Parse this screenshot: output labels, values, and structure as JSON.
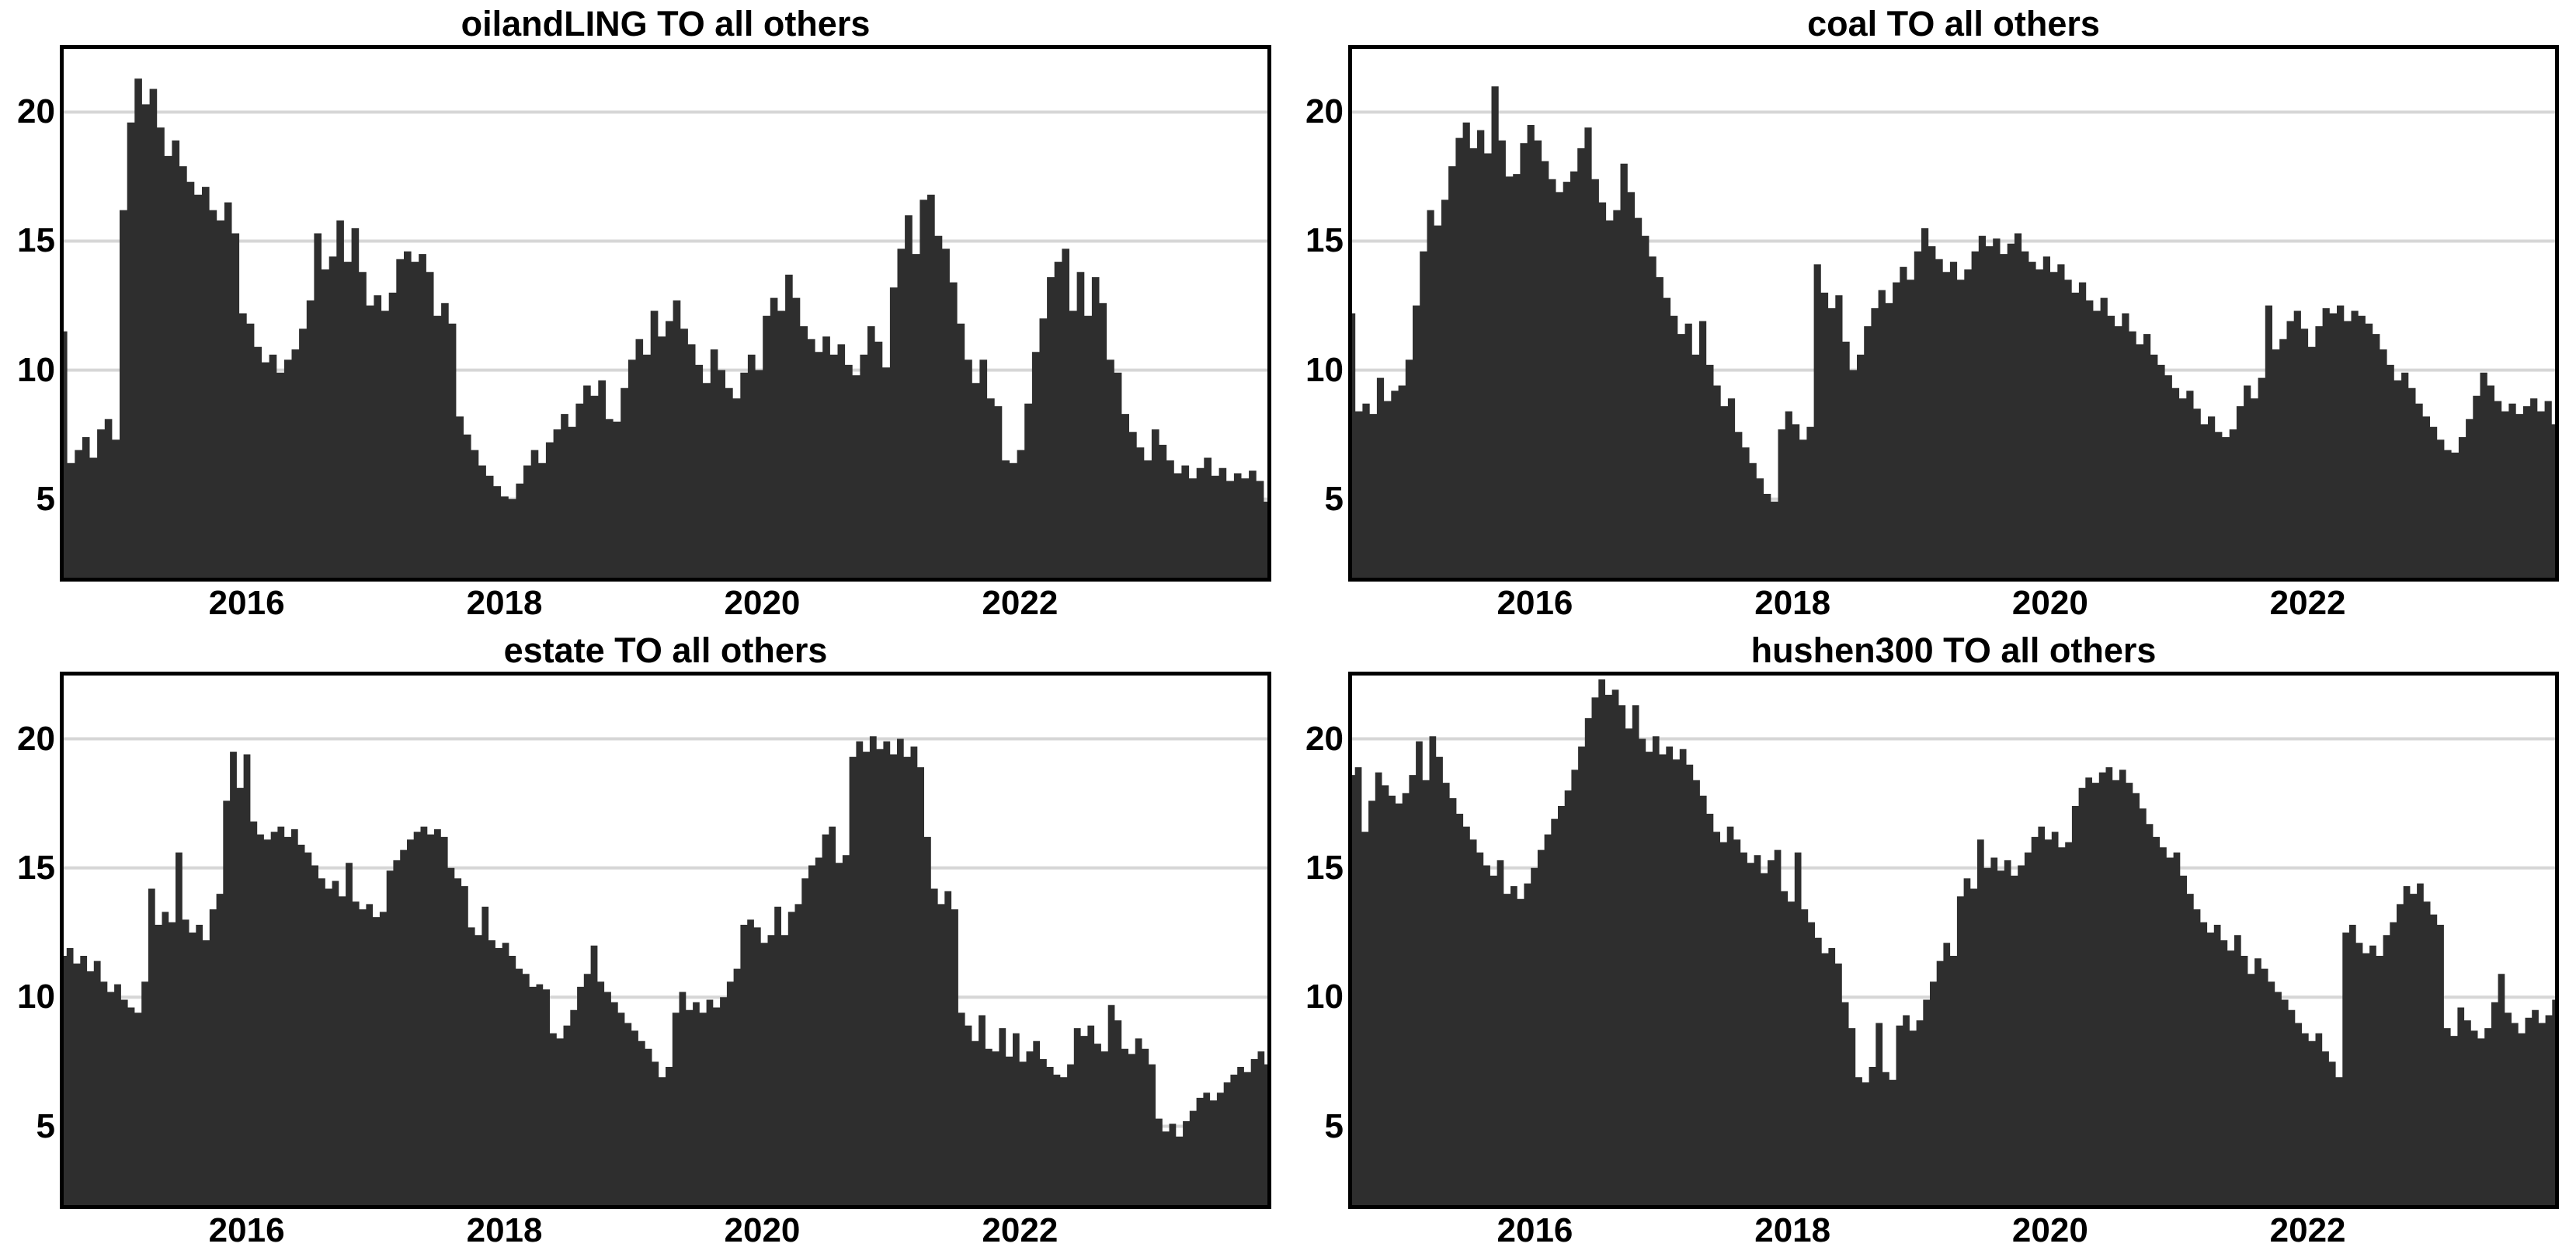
{
  "figure": {
    "description": "2x2 grid of directional spillover (TO all others) area charts",
    "background": "#ffffff"
  },
  "colors": {
    "fill": "#2e2e2e",
    "grid": "#d6d6d6",
    "border": "#000000",
    "text": "#000000"
  },
  "chart_data": [
    {
      "type": "area",
      "title": "oilandLING TO all others",
      "xlabel": "",
      "ylabel": "",
      "x_start": 2014.55,
      "x_end": 2023.95,
      "x_ticks": [
        2016,
        2018,
        2020,
        2022
      ],
      "x_tick_labels": [
        "2016",
        "2018",
        "2020",
        "2022"
      ],
      "y_ticks": [
        5,
        10,
        15,
        20
      ],
      "y_tick_labels": [
        "5",
        "10",
        "15",
        "20"
      ],
      "ylim": [
        1.8,
        22.6
      ],
      "grid": true,
      "legend": "none",
      "values": [
        11.5,
        6.4,
        6.9,
        7.4,
        6.6,
        7.7,
        8.1,
        7.3,
        16.2,
        19.6,
        21.3,
        20.3,
        20.9,
        19.4,
        18.3,
        18.9,
        17.9,
        17.3,
        16.8,
        17.1,
        16.2,
        15.8,
        16.5,
        15.3,
        12.2,
        11.8,
        10.9,
        10.3,
        10.6,
        9.9,
        10.4,
        10.8,
        11.6,
        12.7,
        15.3,
        13.9,
        14.4,
        15.8,
        14.2,
        15.5,
        13.8,
        12.5,
        12.9,
        12.3,
        13.0,
        14.3,
        14.6,
        14.2,
        14.5,
        13.8,
        12.1,
        12.6,
        11.8,
        8.2,
        7.5,
        6.9,
        6.3,
        5.9,
        5.5,
        5.1,
        5.0,
        5.6,
        6.3,
        6.9,
        6.4,
        7.2,
        7.7,
        8.3,
        7.8,
        8.7,
        9.4,
        9.0,
        9.6,
        8.1,
        8.0,
        9.3,
        10.4,
        11.2,
        10.6,
        12.3,
        11.3,
        11.9,
        12.7,
        11.6,
        11.0,
        10.2,
        9.5,
        10.8,
        10.0,
        9.3,
        8.9,
        9.9,
        10.6,
        10.0,
        12.1,
        12.8,
        12.3,
        13.7,
        12.8,
        11.7,
        11.2,
        10.7,
        11.3,
        10.6,
        11.0,
        10.2,
        9.8,
        10.6,
        11.7,
        11.1,
        10.1,
        13.2,
        14.7,
        16.0,
        14.5,
        16.6,
        16.8,
        15.2,
        14.7,
        13.4,
        11.8,
        10.4,
        9.5,
        10.4,
        8.9,
        8.6,
        6.5,
        6.4,
        6.9,
        8.7,
        10.7,
        12.0,
        13.6,
        14.2,
        14.7,
        12.3,
        13.8,
        12.1,
        13.6,
        12.6,
        10.4,
        9.9,
        8.3,
        7.6,
        7.0,
        6.5,
        7.7,
        7.1,
        6.5,
        6.0,
        6.3,
        5.8,
        6.2,
        6.6,
        5.9,
        6.2,
        5.7,
        6.0,
        5.8,
        6.1,
        5.7,
        4.9
      ]
    },
    {
      "type": "area",
      "title": "coal TO all others",
      "xlabel": "",
      "ylabel": "",
      "x_start": 2014.55,
      "x_end": 2023.95,
      "x_ticks": [
        2016,
        2018,
        2020,
        2022
      ],
      "x_tick_labels": [
        "2016",
        "2018",
        "2020",
        "2022"
      ],
      "y_ticks": [
        5,
        10,
        15,
        20
      ],
      "y_tick_labels": [
        "5",
        "10",
        "15",
        "20"
      ],
      "ylim": [
        1.8,
        22.6
      ],
      "grid": true,
      "legend": "none",
      "values": [
        12.2,
        8.4,
        8.7,
        8.3,
        9.7,
        8.8,
        9.2,
        9.4,
        10.4,
        12.5,
        14.6,
        16.2,
        15.6,
        16.6,
        17.9,
        19.0,
        19.6,
        18.6,
        19.3,
        18.4,
        21.0,
        18.9,
        17.5,
        17.6,
        18.8,
        19.5,
        18.9,
        18.1,
        17.4,
        16.9,
        17.3,
        17.7,
        18.6,
        19.4,
        17.4,
        16.5,
        15.8,
        16.2,
        18.0,
        16.9,
        15.9,
        15.2,
        14.4,
        13.6,
        12.8,
        12.1,
        11.4,
        11.8,
        10.6,
        11.9,
        10.2,
        9.4,
        8.6,
        8.9,
        7.6,
        7.0,
        6.4,
        5.8,
        5.2,
        4.9,
        7.7,
        8.4,
        7.9,
        7.3,
        7.8,
        14.1,
        13.0,
        12.4,
        12.9,
        11.1,
        10.0,
        10.6,
        11.7,
        12.4,
        13.1,
        12.6,
        13.4,
        14.0,
        13.5,
        14.6,
        15.5,
        14.8,
        14.3,
        13.8,
        14.2,
        13.5,
        13.9,
        14.6,
        15.2,
        14.8,
        15.1,
        14.5,
        14.9,
        15.3,
        14.6,
        14.2,
        13.9,
        14.4,
        13.8,
        14.1,
        13.5,
        13.0,
        13.4,
        12.7,
        12.3,
        12.8,
        12.1,
        11.7,
        12.2,
        11.5,
        11.0,
        11.4,
        10.6,
        10.2,
        9.8,
        9.3,
        8.9,
        9.2,
        8.5,
        7.9,
        8.2,
        7.6,
        7.4,
        7.7,
        8.6,
        9.4,
        8.9,
        9.7,
        12.5,
        10.8,
        11.2,
        11.9,
        12.3,
        11.6,
        10.9,
        11.7,
        12.4,
        12.2,
        12.5,
        11.9,
        12.3,
        12.1,
        11.8,
        11.4,
        10.8,
        10.2,
        9.6,
        9.9,
        9.3,
        8.7,
        8.2,
        7.8,
        7.3,
        6.9,
        6.8,
        7.4,
        8.1,
        9.0,
        9.9,
        9.4,
        8.8,
        8.4,
        8.7,
        8.3,
        8.6,
        8.9,
        8.4,
        8.8,
        7.9
      ]
    },
    {
      "type": "area",
      "title": "estate TO all others",
      "xlabel": "",
      "ylabel": "",
      "x_start": 2014.55,
      "x_end": 2023.95,
      "x_ticks": [
        2016,
        2018,
        2020,
        2022
      ],
      "x_tick_labels": [
        "2016",
        "2018",
        "2020",
        "2022"
      ],
      "y_ticks": [
        5,
        10,
        15,
        20
      ],
      "y_tick_labels": [
        "5",
        "10",
        "15",
        "20"
      ],
      "ylim": [
        1.8,
        22.6
      ],
      "grid": true,
      "legend": "none",
      "values": [
        11.6,
        11.9,
        11.3,
        11.6,
        11.0,
        11.4,
        10.6,
        10.2,
        10.5,
        9.9,
        9.6,
        9.4,
        10.6,
        14.2,
        12.8,
        13.3,
        12.9,
        15.6,
        13.0,
        12.5,
        12.8,
        12.2,
        13.4,
        14.0,
        17.6,
        19.5,
        18.1,
        19.4,
        16.8,
        16.3,
        16.1,
        16.4,
        16.6,
        16.2,
        16.5,
        15.9,
        15.6,
        15.1,
        14.6,
        14.2,
        14.5,
        13.9,
        15.2,
        13.7,
        13.4,
        13.6,
        13.1,
        13.3,
        14.9,
        15.3,
        15.7,
        16.1,
        16.4,
        16.6,
        16.3,
        16.5,
        16.2,
        15.0,
        14.6,
        14.3,
        12.7,
        12.4,
        13.5,
        12.2,
        11.9,
        12.1,
        11.6,
        11.1,
        10.9,
        10.4,
        10.5,
        10.3,
        8.6,
        8.4,
        8.9,
        9.5,
        10.4,
        10.9,
        12.0,
        10.6,
        10.2,
        9.8,
        9.4,
        9.0,
        8.7,
        8.3,
        8.0,
        7.5,
        6.9,
        7.3,
        9.4,
        10.2,
        9.5,
        9.8,
        9.4,
        9.9,
        9.6,
        10.0,
        10.6,
        11.1,
        12.8,
        13.0,
        12.7,
        12.1,
        12.4,
        13.5,
        12.4,
        13.3,
        13.6,
        14.6,
        15.1,
        15.4,
        16.3,
        16.6,
        15.2,
        15.5,
        19.3,
        19.9,
        19.5,
        20.1,
        19.6,
        19.9,
        19.4,
        20.0,
        19.3,
        19.7,
        18.9,
        16.2,
        14.2,
        13.6,
        14.1,
        13.4,
        9.4,
        8.9,
        8.3,
        9.3,
        8.0,
        7.9,
        8.8,
        7.7,
        8.6,
        7.5,
        7.9,
        8.3,
        7.6,
        7.3,
        7.0,
        6.9,
        7.4,
        8.8,
        8.5,
        8.9,
        8.2,
        7.9,
        9.7,
        9.1,
        8.0,
        7.8,
        8.4,
        8.0,
        7.4,
        5.3,
        4.8,
        5.1,
        4.6,
        5.2,
        5.6,
        6.1,
        6.3,
        6.0,
        6.3,
        6.7,
        7.0,
        7.3,
        7.1,
        7.6,
        7.9,
        7.4
      ]
    },
    {
      "type": "area",
      "title": "hushen300 TO all others",
      "xlabel": "",
      "ylabel": "",
      "x_start": 2014.55,
      "x_end": 2023.95,
      "x_ticks": [
        2016,
        2018,
        2020,
        2022
      ],
      "x_tick_labels": [
        "2016",
        "2018",
        "2020",
        "2022"
      ],
      "y_ticks": [
        5,
        10,
        15,
        20
      ],
      "y_tick_labels": [
        "5",
        "10",
        "15",
        "20"
      ],
      "ylim": [
        1.8,
        22.6
      ],
      "grid": true,
      "legend": "none",
      "values": [
        18.6,
        18.9,
        16.4,
        17.6,
        18.7,
        18.2,
        17.8,
        17.5,
        17.9,
        18.6,
        19.9,
        18.4,
        20.1,
        19.3,
        18.3,
        17.7,
        17.1,
        16.6,
        16.1,
        15.6,
        15.1,
        14.7,
        15.3,
        14.0,
        14.3,
        13.8,
        14.4,
        15.0,
        15.7,
        16.3,
        16.9,
        17.4,
        18.0,
        18.8,
        19.7,
        20.8,
        21.6,
        22.3,
        21.7,
        21.9,
        21.3,
        20.4,
        21.3,
        20.0,
        19.5,
        20.1,
        19.4,
        19.7,
        19.2,
        19.6,
        19.0,
        18.4,
        17.8,
        17.1,
        16.4,
        16.0,
        16.6,
        16.1,
        15.6,
        15.2,
        15.5,
        14.8,
        15.3,
        15.7,
        14.1,
        13.7,
        15.6,
        13.4,
        12.9,
        12.3,
        11.7,
        11.9,
        11.3,
        9.8,
        8.8,
        6.9,
        6.7,
        7.3,
        9.0,
        7.1,
        6.8,
        8.9,
        9.3,
        8.7,
        9.1,
        9.9,
        10.6,
        11.4,
        12.1,
        11.6,
        13.9,
        14.6,
        14.2,
        16.1,
        15.0,
        15.4,
        14.9,
        15.3,
        14.7,
        15.1,
        15.6,
        16.2,
        16.6,
        16.1,
        16.4,
        15.8,
        16.0,
        17.4,
        18.1,
        18.5,
        18.3,
        18.7,
        18.9,
        18.4,
        18.8,
        18.3,
        17.9,
        17.3,
        16.7,
        16.2,
        15.8,
        15.4,
        15.6,
        14.7,
        14.0,
        13.4,
        12.9,
        12.5,
        12.8,
        12.2,
        11.8,
        12.4,
        11.6,
        10.9,
        11.5,
        11.1,
        10.6,
        10.2,
        9.9,
        9.5,
        9.0,
        8.6,
        8.3,
        8.6,
        7.9,
        7.5,
        6.9,
        12.5,
        12.8,
        12.1,
        11.7,
        12.0,
        11.6,
        12.4,
        12.9,
        13.6,
        14.3,
        14.0,
        14.4,
        13.7,
        13.2,
        12.8,
        8.8,
        8.5,
        9.6,
        9.1,
        8.7,
        8.4,
        8.8,
        9.8,
        10.9,
        9.4,
        9.0,
        8.6,
        9.2,
        9.5,
        9.0,
        9.3,
        9.9
      ]
    }
  ]
}
